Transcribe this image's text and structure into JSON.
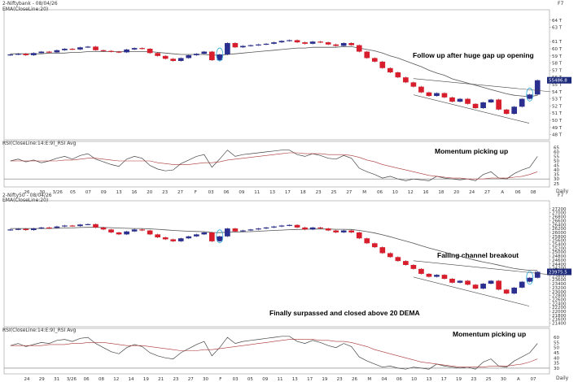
{
  "chart_data": [
    {
      "type": "candlestick",
      "panel": "niftybank-price",
      "header": "2-Niftybank - 08/04/26",
      "indicator_label": "EMA(CloseLine:20)",
      "price_tag": "55486.8",
      "y_ticks": [
        "64 T",
        "63 T",
        "61 T",
        "60 T",
        "59 T",
        "58 T",
        "57 T",
        "56 T",
        "55 T",
        "54 T",
        "53 T",
        "52 T",
        "51 T",
        "50 T",
        "49 T",
        "48 T"
      ],
      "ylim": [
        47.5,
        65
      ],
      "closes": [
        59.2,
        59.3,
        59.1,
        59.4,
        59.6,
        59.5,
        59.8,
        60.0,
        59.9,
        60.2,
        60.3,
        59.8,
        59.7,
        59.6,
        59.5,
        59.9,
        60.1,
        60.0,
        59.4,
        59.0,
        58.6,
        58.3,
        58.7,
        59.1,
        59.3,
        59.6,
        58.4,
        59.2,
        60.8,
        60.2,
        60.4,
        60.5,
        60.6,
        60.7,
        60.9,
        61.1,
        61.2,
        60.9,
        60.7,
        61.0,
        60.9,
        60.6,
        60.4,
        60.8,
        60.5,
        59.6,
        58.7,
        58.2,
        57.3,
        56.7,
        56.0,
        55.3,
        54.7,
        53.9,
        53.4,
        53.8,
        53.2,
        52.6,
        53.0,
        52.3,
        51.7,
        52.5,
        52.9,
        51.5,
        50.9,
        51.9,
        53.0,
        53.6,
        55.6
      ],
      "ema": [
        59.3,
        59.3,
        59.3,
        59.3,
        59.3,
        59.4,
        59.4,
        59.4,
        59.5,
        59.5,
        59.6,
        59.6,
        59.6,
        59.6,
        59.6,
        59.6,
        59.6,
        59.6,
        59.6,
        59.5,
        59.4,
        59.3,
        59.2,
        59.2,
        59.2,
        59.2,
        59.1,
        59.1,
        59.2,
        59.3,
        59.4,
        59.5,
        59.6,
        59.7,
        59.8,
        59.9,
        60.0,
        60.1,
        60.1,
        60.2,
        60.2,
        60.2,
        60.2,
        60.3,
        60.3,
        60.1,
        59.9,
        59.7,
        59.4,
        59.0,
        58.7,
        58.3,
        57.9,
        57.5,
        57.0,
        56.6,
        56.3,
        55.8,
        55.5,
        55.2,
        54.9,
        54.6,
        54.3,
        54.0,
        53.7,
        53.5,
        53.4,
        53.3,
        53.5
      ],
      "annotations": [
        "Follow up after huge gap up opening"
      ]
    },
    {
      "type": "line",
      "panel": "niftybank-rsi",
      "indicator_label": "RSI(CloseLine:14:E:9)_RSI Avg",
      "y_ticks": [
        "65",
        "60",
        "55",
        "50",
        "45",
        "40",
        "35",
        "30",
        "25"
      ],
      "ylim": [
        23,
        68
      ],
      "horizontal_levels": [
        30
      ],
      "rsi": [
        50,
        52,
        49,
        51,
        48,
        50,
        53,
        55,
        52,
        56,
        58,
        52,
        49,
        46,
        44,
        52,
        55,
        53,
        45,
        41,
        39,
        40,
        47,
        51,
        55,
        57,
        43,
        52,
        62,
        55,
        57,
        58,
        59,
        60,
        61,
        62,
        62,
        57,
        55,
        58,
        56,
        53,
        52,
        56,
        53,
        42,
        38,
        35,
        31,
        33,
        30,
        28,
        30,
        29,
        28,
        33,
        31,
        30,
        29,
        30,
        28,
        35,
        38,
        31,
        30,
        36,
        40,
        43,
        55
      ],
      "rsi_avg": [
        50,
        50,
        50,
        50,
        50,
        50,
        50,
        51,
        51,
        52,
        53,
        53,
        52,
        51,
        50,
        50,
        50,
        50,
        50,
        48,
        47,
        46,
        46,
        46,
        47,
        48,
        48,
        49,
        51,
        52,
        53,
        54,
        55,
        56,
        57,
        58,
        59,
        59,
        58,
        58,
        58,
        57,
        57,
        57,
        56,
        54,
        51,
        49,
        46,
        44,
        42,
        40,
        38,
        36,
        34,
        33,
        32,
        31,
        31,
        30,
        30,
        30,
        31,
        31,
        31,
        32,
        33,
        35,
        38
      ],
      "annotations": [
        "Momentum picking up"
      ],
      "x_ticks": [
        "26",
        "30",
        "3/26",
        "05",
        "07",
        "09",
        "13",
        "16",
        "20",
        "23",
        "27",
        "F",
        "03",
        "06",
        "09",
        "11",
        "13",
        "17",
        "18",
        "23",
        "25",
        "27",
        "M",
        "06",
        "10",
        "12",
        "16",
        "18",
        "20",
        "24",
        "27",
        "A",
        "06",
        "08"
      ]
    },
    {
      "type": "candlestick",
      "panel": "nifty50-price",
      "header": "2-Nifty50 - 08/04/26",
      "indicator_label": "EMA(CloseLine:20)",
      "price_tag": "23975.5",
      "y_ticks": [
        "27200",
        "27000",
        "26800",
        "26600",
        "26400",
        "26200",
        "26000",
        "25800",
        "25600",
        "25400",
        "25200",
        "25000",
        "24800",
        "24600",
        "24400",
        "24200",
        "24000",
        "23800",
        "23600",
        "23400",
        "23200",
        "23000",
        "22800",
        "22600",
        "22400",
        "22200",
        "22000",
        "21800",
        "21600",
        "21400"
      ],
      "ylim": [
        21300,
        27400
      ],
      "closes": [
        26150,
        26180,
        26120,
        26200,
        26250,
        26230,
        26300,
        26350,
        26320,
        26400,
        26420,
        26250,
        26150,
        26000,
        25900,
        26050,
        26150,
        26100,
        25900,
        25750,
        25650,
        25550,
        25700,
        25800,
        25900,
        26000,
        25550,
        25800,
        26200,
        26050,
        26100,
        26150,
        26200,
        26250,
        26300,
        26350,
        26380,
        26250,
        26150,
        26250,
        26200,
        26100,
        26000,
        26100,
        26000,
        25700,
        25450,
        25250,
        24950,
        24750,
        24550,
        24350,
        24150,
        23900,
        23750,
        23850,
        23650,
        23450,
        23550,
        23350,
        23150,
        23400,
        23550,
        23100,
        22900,
        23200,
        23500,
        23700,
        24000
      ],
      "ema": [
        26200,
        26200,
        26200,
        26200,
        26200,
        26200,
        26210,
        26220,
        26230,
        26250,
        26260,
        26260,
        26250,
        26240,
        26220,
        26210,
        26200,
        26200,
        26180,
        26160,
        26130,
        26100,
        26080,
        26060,
        26050,
        26040,
        26000,
        25990,
        26010,
        26020,
        26030,
        26040,
        26060,
        26080,
        26100,
        26120,
        26140,
        26150,
        26160,
        26170,
        26170,
        26170,
        26160,
        26160,
        26150,
        26100,
        26040,
        25970,
        25880,
        25780,
        25670,
        25560,
        25450,
        25330,
        25210,
        25110,
        25000,
        24890,
        24790,
        24690,
        24590,
        24500,
        24430,
        24340,
        24250,
        24170,
        24120,
        24080,
        24070
      ],
      "annotations": [
        "Falling channel breakout",
        "Finally surpassed and closed above 20 DEMA"
      ]
    },
    {
      "type": "line",
      "panel": "nifty50-rsi",
      "indicator_label": "RSI(CloseLine:14:E:9)_RSI Avg",
      "y_ticks": [
        "60",
        "55",
        "50",
        "45",
        "40",
        "35",
        "30"
      ],
      "ylim": [
        26,
        64
      ],
      "horizontal_levels": [
        30
      ],
      "rsi": [
        52,
        54,
        51,
        53,
        55,
        54,
        57,
        58,
        56,
        59,
        60,
        54,
        50,
        46,
        44,
        50,
        53,
        51,
        45,
        42,
        40,
        39,
        45,
        49,
        53,
        56,
        42,
        50,
        60,
        54,
        56,
        57,
        58,
        59,
        60,
        61,
        61,
        56,
        54,
        57,
        55,
        52,
        50,
        54,
        51,
        41,
        37,
        34,
        31,
        32,
        30,
        29,
        31,
        30,
        29,
        34,
        32,
        31,
        30,
        31,
        29,
        36,
        39,
        32,
        31,
        37,
        41,
        45,
        54
      ],
      "rsi_avg": [
        52,
        52,
        52,
        52,
        52,
        53,
        53,
        53,
        54,
        54,
        55,
        55,
        55,
        54,
        53,
        52,
        52,
        52,
        51,
        50,
        49,
        48,
        47,
        47,
        47,
        48,
        48,
        49,
        50,
        51,
        52,
        53,
        54,
        55,
        56,
        57,
        58,
        58,
        58,
        58,
        57,
        57,
        56,
        56,
        55,
        53,
        51,
        48,
        46,
        44,
        42,
        40,
        38,
        36,
        35,
        34,
        33,
        32,
        31,
        31,
        31,
        31,
        32,
        32,
        32,
        33,
        34,
        36,
        39
      ],
      "annotations": [
        "Momentum picking up"
      ],
      "x_ticks": [
        "24",
        "29",
        "31",
        "3/26",
        "06",
        "08",
        "12",
        "14",
        "19",
        "21",
        "23",
        "27",
        "30",
        "F",
        "03",
        "05",
        "09",
        "11",
        "13",
        "17",
        "19",
        "23",
        "26",
        "M",
        "04",
        "06",
        "10",
        "13",
        "17",
        "19",
        "23",
        "25",
        "30",
        "A",
        "07"
      ]
    }
  ],
  "timeframe": "Daily",
  "corner": "F7"
}
